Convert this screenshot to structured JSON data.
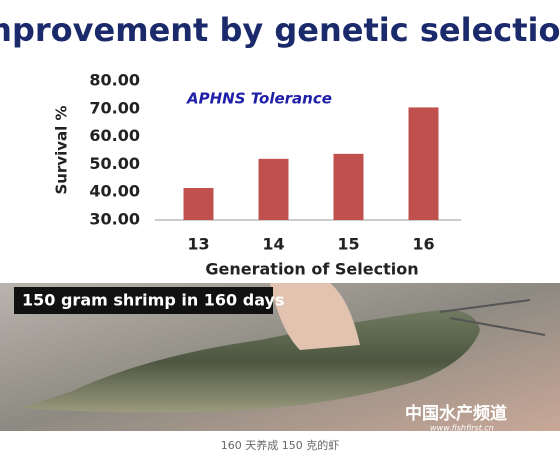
{
  "chart_data": {
    "type": "bar",
    "title": "Improvement by genetic selection",
    "annotation": "APHNS Tolerance",
    "y_label": "Survival %",
    "x_label": "Generation of Selection",
    "categories": [
      "13",
      "14",
      "15",
      "16"
    ],
    "values": [
      41.5,
      52,
      53.8,
      70.5
    ],
    "color": "#c0504d",
    "ylim": [
      30,
      80
    ],
    "yticks": [
      {
        "value": 30,
        "label": "30.00"
      },
      {
        "value": 40,
        "label": "40.00"
      },
      {
        "value": 50,
        "label": "50.00"
      },
      {
        "value": 60,
        "label": "60.00"
      },
      {
        "value": 70,
        "label": "70.00"
      },
      {
        "value": 80,
        "label": "80.00"
      }
    ],
    "grid": false
  },
  "photo": {
    "label": "150 gram shrimp in 160 days",
    "watermark": "中国水产频道",
    "watermark_url": "www.fishfirst.cn"
  },
  "caption": "160 天养成 150 克的虾"
}
